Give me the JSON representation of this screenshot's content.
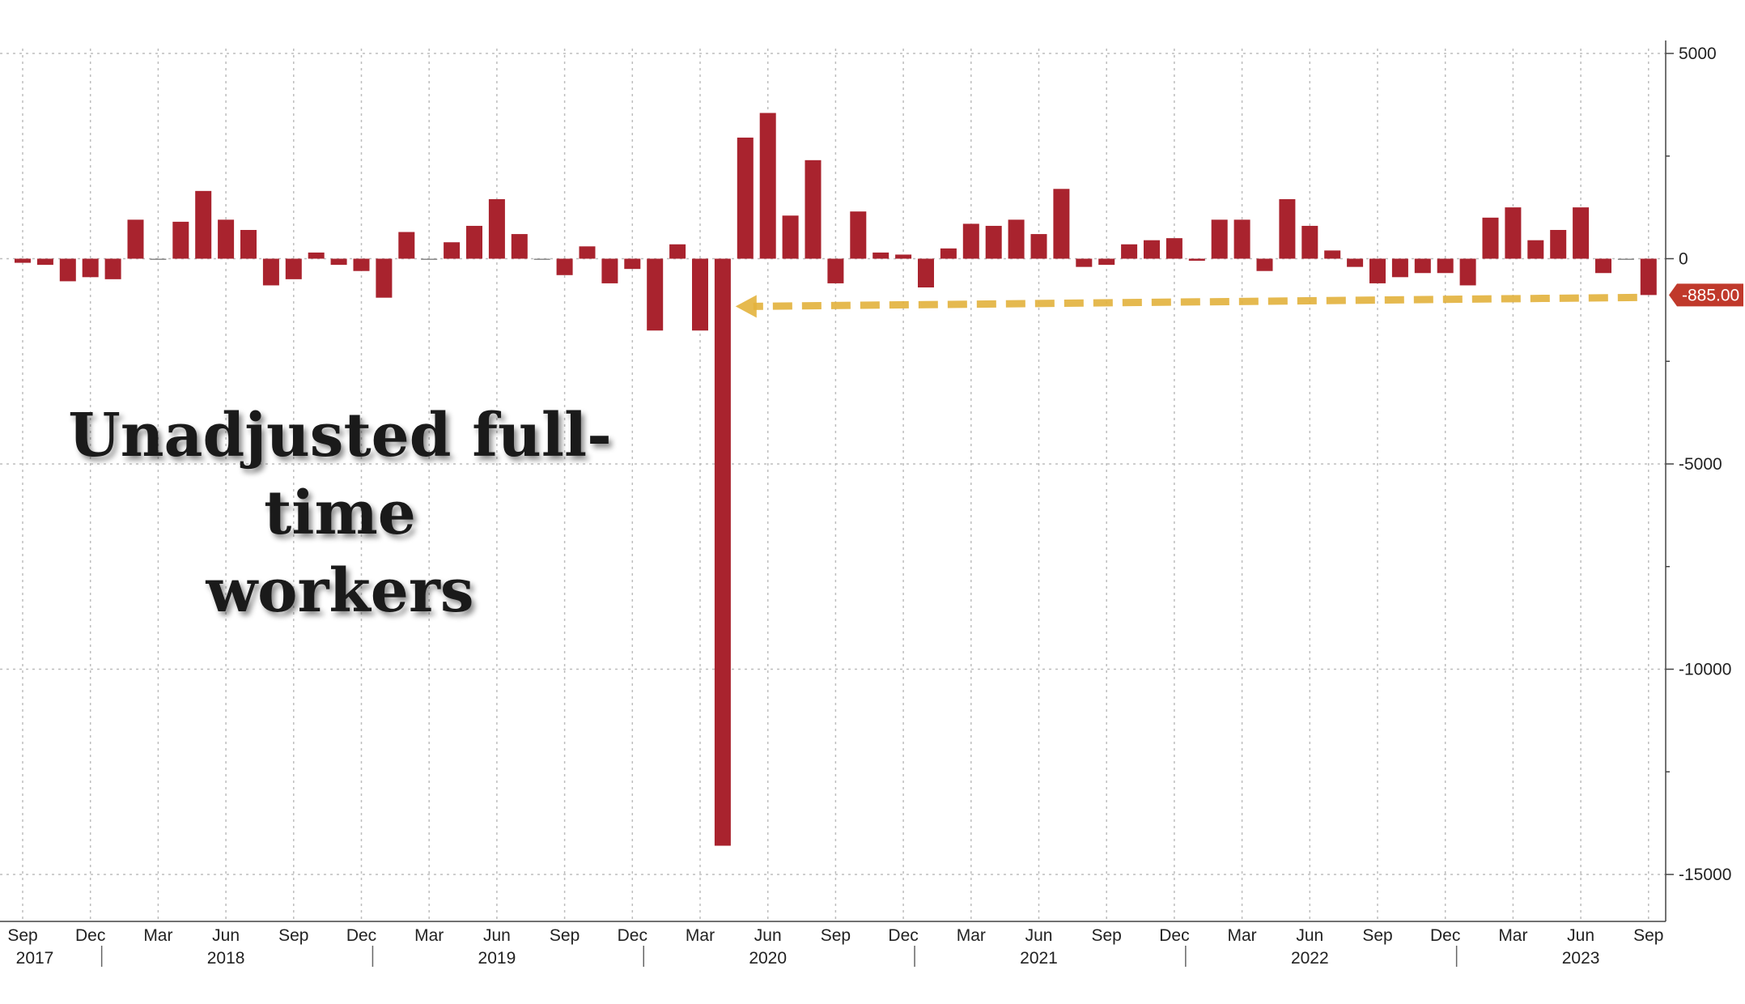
{
  "chart_data": {
    "type": "bar",
    "title": "Unadjusted full-time workers",
    "title_lines": [
      "Unadjusted full-time",
      "workers"
    ],
    "bar_color": "#a9232e",
    "arrow_color": "#e3b23c",
    "callout_color": "#c0392b",
    "callout_label": "-885.00",
    "ylim": [
      -16000,
      5000
    ],
    "y_ticks": [
      {
        "value": 5000,
        "label": "5000"
      },
      {
        "value": 0,
        "label": "0"
      },
      {
        "value": -5000,
        "label": "-5000"
      },
      {
        "value": -10000,
        "label": "-10000"
      },
      {
        "value": -15000,
        "label": "-15000"
      }
    ],
    "x_tick_labels": [
      {
        "month": "2017-09",
        "label": "Sep"
      },
      {
        "month": "2017-12",
        "label": "Dec"
      },
      {
        "month": "2018-03",
        "label": "Mar"
      },
      {
        "month": "2018-06",
        "label": "Jun"
      },
      {
        "month": "2018-09",
        "label": "Sep"
      },
      {
        "month": "2018-12",
        "label": "Dec"
      },
      {
        "month": "2019-03",
        "label": "Mar"
      },
      {
        "month": "2019-06",
        "label": "Jun"
      },
      {
        "month": "2019-09",
        "label": "Sep"
      },
      {
        "month": "2019-12",
        "label": "Dec"
      },
      {
        "month": "2020-03",
        "label": "Mar"
      },
      {
        "month": "2020-06",
        "label": "Jun"
      },
      {
        "month": "2020-09",
        "label": "Sep"
      },
      {
        "month": "2020-12",
        "label": "Dec"
      },
      {
        "month": "2021-03",
        "label": "Mar"
      },
      {
        "month": "2021-06",
        "label": "Jun"
      },
      {
        "month": "2021-09",
        "label": "Sep"
      },
      {
        "month": "2021-12",
        "label": "Dec"
      },
      {
        "month": "2022-03",
        "label": "Mar"
      },
      {
        "month": "2022-06",
        "label": "Jun"
      },
      {
        "month": "2022-09",
        "label": "Sep"
      },
      {
        "month": "2022-12",
        "label": "Dec"
      },
      {
        "month": "2023-03",
        "label": "Mar"
      },
      {
        "month": "2023-06",
        "label": "Jun"
      },
      {
        "month": "2023-09",
        "label": "Sep"
      }
    ],
    "year_labels": [
      {
        "month": "2017-09",
        "label": "2017"
      },
      {
        "month": "2018-06",
        "label": "2018"
      },
      {
        "month": "2019-06",
        "label": "2019"
      },
      {
        "month": "2020-06",
        "label": "2020"
      },
      {
        "month": "2021-06",
        "label": "2021"
      },
      {
        "month": "2022-06",
        "label": "2022"
      },
      {
        "month": "2023-06",
        "label": "2023"
      }
    ],
    "year_boundaries": [
      "2018-01",
      "2019-01",
      "2020-01",
      "2021-01",
      "2022-01",
      "2023-01"
    ],
    "x": [
      "2017-09",
      "2017-10",
      "2017-11",
      "2017-12",
      "2018-01",
      "2018-02",
      "2018-03",
      "2018-04",
      "2018-05",
      "2018-06",
      "2018-07",
      "2018-08",
      "2018-09",
      "2018-10",
      "2018-11",
      "2018-12",
      "2019-01",
      "2019-02",
      "2019-03",
      "2019-04",
      "2019-05",
      "2019-06",
      "2019-07",
      "2019-08",
      "2019-09",
      "2019-10",
      "2019-11",
      "2019-12",
      "2020-01",
      "2020-02",
      "2020-03",
      "2020-04",
      "2020-05",
      "2020-06",
      "2020-07",
      "2020-08",
      "2020-09",
      "2020-10",
      "2020-11",
      "2020-12",
      "2021-01",
      "2021-02",
      "2021-03",
      "2021-04",
      "2021-05",
      "2021-06",
      "2021-07",
      "2021-08",
      "2021-09",
      "2021-10",
      "2021-11",
      "2021-12",
      "2022-01",
      "2022-02",
      "2022-03",
      "2022-04",
      "2022-05",
      "2022-06",
      "2022-07",
      "2022-08",
      "2022-09",
      "2022-10",
      "2022-11",
      "2022-12",
      "2023-01",
      "2023-02",
      "2023-03",
      "2023-04",
      "2023-05",
      "2023-06",
      "2023-07",
      "2023-08",
      "2023-09"
    ],
    "values": [
      -100,
      -150,
      -550,
      -450,
      -500,
      950,
      0,
      900,
      1650,
      950,
      700,
      -650,
      -500,
      150,
      -150,
      -300,
      -950,
      650,
      0,
      400,
      800,
      1450,
      600,
      0,
      -400,
      300,
      -600,
      -250,
      -1750,
      350,
      -1750,
      -14300,
      2950,
      3550,
      1050,
      2400,
      -600,
      1150,
      150,
      100,
      -700,
      250,
      850,
      800,
      950,
      600,
      1700,
      -200,
      -150,
      350,
      450,
      500,
      -50,
      950,
      950,
      -300,
      1450,
      800,
      200,
      -200,
      -600,
      -450,
      -350,
      -350,
      -650,
      1000,
      1250,
      450,
      700,
      1250,
      -350,
      0,
      -885
    ]
  }
}
